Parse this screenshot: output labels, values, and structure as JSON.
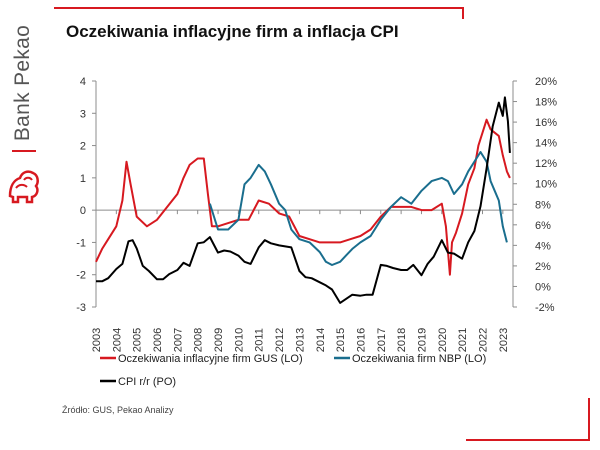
{
  "brand": {
    "name": "Bank Pekao"
  },
  "title": "Oczekiwania inflacyjne firm a inflacja CPI",
  "source": "Źródło: GUS, Pekao Analizy",
  "colors": {
    "brand_red": "#d71920",
    "gus": "#d71920",
    "nbp": "#1a6e8e",
    "cpi": "#000000",
    "gray": "#555555"
  },
  "icons": {
    "logo": "pekao-bison-logo"
  },
  "chart_data": {
    "type": "line",
    "title": "Oczekiwania inflacyjne firm a inflacja CPI",
    "xlim": [
      2003.0,
      2023.5
    ],
    "ylim_left": [
      -3,
      4
    ],
    "ylim_right": [
      -2,
      20
    ],
    "x_ticks": [
      "2003",
      "2004",
      "2005",
      "2006",
      "2007",
      "2008",
      "2009",
      "2010",
      "2011",
      "2012",
      "2013",
      "2014",
      "2015",
      "2016",
      "2017",
      "2018",
      "2019",
      "2020",
      "2021",
      "2022",
      "2023"
    ],
    "y_left_ticks": [
      "-3",
      "-2",
      "-1",
      "0",
      "1",
      "2",
      "3",
      "4"
    ],
    "y_right_ticks": [
      "-2%",
      "0%",
      "2%",
      "4%",
      "6%",
      "8%",
      "10%",
      "12%",
      "14%",
      "16%",
      "18%",
      "20%"
    ],
    "grid": false,
    "legend_position": "bottom",
    "series": [
      {
        "name": "Oczekiwania inflacyjne firm GUS (LO)",
        "axis": "left",
        "x": [
          2003.0,
          2003.3,
          2003.6,
          2004.0,
          2004.3,
          2004.5,
          2004.7,
          2005.0,
          2005.5,
          2006.0,
          2006.5,
          2007.0,
          2007.3,
          2007.6,
          2008.0,
          2008.3,
          2008.5,
          2008.7,
          2009.0,
          2009.5,
          2010.0,
          2010.5,
          2011.0,
          2011.5,
          2012.0,
          2012.5,
          2013.0,
          2013.5,
          2014.0,
          2014.5,
          2015.0,
          2015.5,
          2016.0,
          2016.5,
          2017.0,
          2017.5,
          2018.0,
          2018.5,
          2019.0,
          2019.5,
          2020.0,
          2020.2,
          2020.4,
          2020.5,
          2020.7,
          2021.0,
          2021.3,
          2021.6,
          2021.8,
          2022.0,
          2022.2,
          2022.4,
          2022.6,
          2022.8,
          2023.0,
          2023.2,
          2023.35
        ],
        "y": [
          -1.6,
          -1.2,
          -0.9,
          -0.5,
          0.3,
          1.5,
          0.8,
          -0.2,
          -0.5,
          -0.3,
          0.1,
          0.5,
          1.0,
          1.4,
          1.6,
          1.6,
          0.5,
          -0.5,
          -0.5,
          -0.4,
          -0.3,
          -0.3,
          0.3,
          0.2,
          -0.1,
          -0.2,
          -0.8,
          -0.9,
          -1.0,
          -1.0,
          -1.0,
          -0.9,
          -0.8,
          -0.6,
          -0.2,
          0.1,
          0.1,
          0.1,
          0.0,
          0.0,
          0.2,
          -0.5,
          -2.0,
          -1.0,
          -0.7,
          -0.1,
          0.8,
          1.3,
          2.0,
          2.4,
          2.8,
          2.5,
          2.4,
          2.3,
          1.7,
          1.2,
          1.0
        ]
      },
      {
        "name": "Oczekiwania firm NBP (LO)",
        "axis": "left",
        "x": [
          2008.6,
          2009.0,
          2009.5,
          2010.0,
          2010.3,
          2010.6,
          2011.0,
          2011.3,
          2011.6,
          2012.0,
          2012.3,
          2012.6,
          2013.0,
          2013.5,
          2014.0,
          2014.3,
          2014.6,
          2015.0,
          2015.3,
          2015.6,
          2016.0,
          2016.5,
          2017.0,
          2017.5,
          2018.0,
          2018.5,
          2019.0,
          2019.5,
          2020.0,
          2020.3,
          2020.6,
          2021.0,
          2021.3,
          2021.6,
          2021.9,
          2022.2,
          2022.4,
          2022.6,
          2022.8,
          2023.0,
          2023.2
        ],
        "y": [
          0.2,
          -0.6,
          -0.6,
          -0.3,
          0.8,
          1.0,
          1.4,
          1.2,
          0.8,
          0.2,
          0.0,
          -0.6,
          -0.9,
          -1.0,
          -1.3,
          -1.6,
          -1.7,
          -1.6,
          -1.4,
          -1.2,
          -1.0,
          -0.8,
          -0.3,
          0.1,
          0.4,
          0.2,
          0.6,
          0.9,
          1.0,
          0.9,
          0.5,
          0.8,
          1.2,
          1.5,
          1.8,
          1.5,
          0.9,
          0.6,
          0.3,
          -0.5,
          -1.0
        ]
      },
      {
        "name": "CPI r/r (PO)",
        "axis": "right",
        "x": [
          2003.0,
          2003.3,
          2003.6,
          2004.0,
          2004.3,
          2004.6,
          2004.8,
          2005.0,
          2005.3,
          2005.6,
          2006.0,
          2006.3,
          2006.6,
          2007.0,
          2007.3,
          2007.6,
          2008.0,
          2008.3,
          2008.6,
          2009.0,
          2009.3,
          2009.6,
          2010.0,
          2010.3,
          2010.6,
          2011.0,
          2011.3,
          2011.6,
          2012.0,
          2012.3,
          2012.6,
          2013.0,
          2013.3,
          2013.6,
          2014.0,
          2014.3,
          2014.6,
          2015.0,
          2015.3,
          2015.6,
          2016.0,
          2016.3,
          2016.6,
          2017.0,
          2017.3,
          2017.6,
          2018.0,
          2018.3,
          2018.6,
          2019.0,
          2019.3,
          2019.6,
          2020.0,
          2020.3,
          2020.6,
          2021.0,
          2021.3,
          2021.6,
          2021.9,
          2022.2,
          2022.5,
          2022.8,
          2023.0,
          2023.1,
          2023.25,
          2023.35
        ],
        "y": [
          0.5,
          0.5,
          0.8,
          1.7,
          2.2,
          4.4,
          4.5,
          3.7,
          2.0,
          1.5,
          0.7,
          0.7,
          1.2,
          1.6,
          2.3,
          2.0,
          4.2,
          4.3,
          4.8,
          3.3,
          3.5,
          3.4,
          3.0,
          2.4,
          2.2,
          3.8,
          4.5,
          4.2,
          4.0,
          3.9,
          3.8,
          1.5,
          0.9,
          0.8,
          0.4,
          0.1,
          -0.3,
          -1.6,
          -1.2,
          -0.8,
          -0.9,
          -0.8,
          -0.8,
          2.1,
          2.0,
          1.8,
          1.6,
          1.6,
          2.1,
          1.1,
          2.2,
          2.9,
          4.5,
          3.3,
          3.2,
          2.7,
          4.3,
          5.4,
          7.8,
          11.5,
          15.6,
          17.9,
          16.6,
          18.4,
          16.1,
          13.0
        ]
      }
    ]
  }
}
